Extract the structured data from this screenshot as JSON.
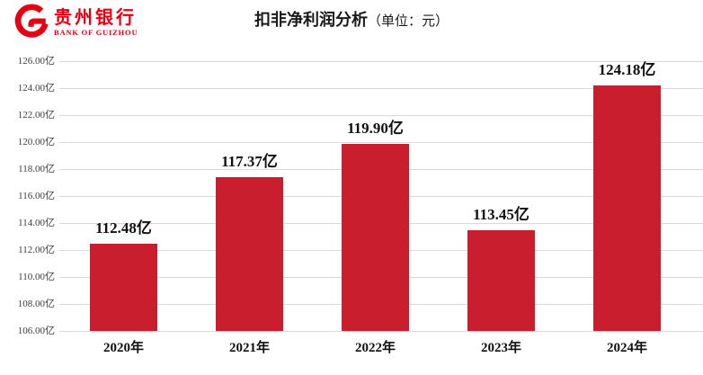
{
  "header": {
    "logo": {
      "icon": "bank-of-guizhou-g-logo",
      "cn_name": "贵州银行",
      "en_name": "BANK OF GUIZHOU",
      "brand_color": "#E60012"
    },
    "title_main": "扣非净利润分析",
    "title_unit": "（单位：元）"
  },
  "chart_data": {
    "type": "bar",
    "title": "扣非净利润分析（单位：元）",
    "categories": [
      "2020年",
      "2021年",
      "2022年",
      "2023年",
      "2024年"
    ],
    "values": [
      112.48,
      117.37,
      119.9,
      113.45,
      124.18
    ],
    "value_labels": [
      "112.48亿",
      "117.37亿",
      "119.90亿",
      "113.45亿",
      "124.18亿"
    ],
    "xlabel": "",
    "ylabel": "",
    "unit_suffix": "亿",
    "ylim": [
      106,
      126
    ],
    "ytick_step": 2,
    "ytick_labels": [
      "126.00亿",
      "124.00亿",
      "122.00亿",
      "120.00亿",
      "118.00亿",
      "116.00亿",
      "114.00亿",
      "112.00亿",
      "110.00亿",
      "108.00亿",
      "106.00亿"
    ],
    "grid": true,
    "legend_position": "none",
    "bar_color": "#C81E2E",
    "gridline_color": "#D9D9D9",
    "label_color": "#111111",
    "tick_color": "#3D3D3D"
  }
}
